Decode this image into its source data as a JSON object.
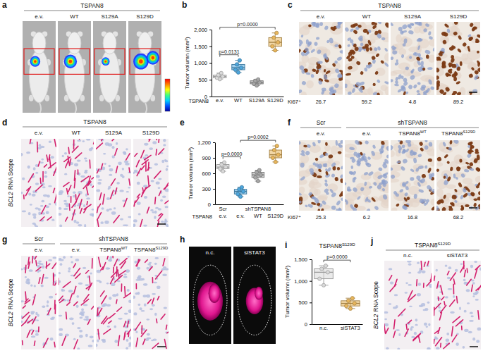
{
  "chart_data": [
    {
      "type": "box",
      "label": "b",
      "ylabel": "Tumor volumn (mm³)",
      "xlabel": "TSPAN8",
      "categories": [
        "e.v.",
        "WT",
        "S129A",
        "S129D"
      ],
      "points": [
        [
          520,
          560,
          600,
          640,
          700
        ],
        [
          720,
          800,
          860,
          960,
          1080
        ],
        [
          330,
          380,
          420,
          470,
          510
        ],
        [
          1380,
          1500,
          1620,
          1760,
          1900
        ]
      ],
      "boxes": [
        [
          520,
          560,
          600,
          640,
          700
        ],
        [
          720,
          800,
          860,
          960,
          1080
        ],
        [
          330,
          380,
          420,
          470,
          510
        ],
        [
          1380,
          1500,
          1620,
          1760,
          1900
        ]
      ],
      "colors": [
        "#d9d9d9",
        "#4ea6dc",
        "#a6a6a6",
        "#e8b65c"
      ],
      "ylim": [
        0,
        2000
      ],
      "yticks": [
        0,
        500,
        {
          "value": 1000,
          "label": "1,000"
        },
        {
          "value": 1500,
          "label": "1,500"
        },
        {
          "value": 2000,
          "label": "2,000"
        }
      ],
      "annotations": [
        {
          "text": "p=0.0131",
          "from": 0,
          "to": 1
        },
        {
          "text": "p=0.0000",
          "from": 0,
          "to": 3
        }
      ]
    },
    {
      "type": "box",
      "label": "e",
      "ylabel": "Tumor volumn (mm³)",
      "xlabel": "TSPAN8",
      "groups": [
        {
          "text": "Scr",
          "span": 1
        },
        {
          "text": "shTSPAN8",
          "span": 3
        }
      ],
      "categories": [
        "e.v.",
        "e.v.",
        "WT",
        "S129D"
      ],
      "points": [
        [
          640,
          690,
          720,
          770,
          810
        ],
        [
          150,
          200,
          250,
          290,
          330
        ],
        [
          450,
          520,
          570,
          620,
          660
        ],
        [
          820,
          900,
          960,
          1050,
          1130
        ]
      ],
      "boxes": [
        [
          640,
          690,
          720,
          770,
          810
        ],
        [
          150,
          200,
          250,
          290,
          330
        ],
        [
          450,
          520,
          570,
          620,
          660
        ],
        [
          820,
          900,
          960,
          1050,
          1130
        ]
      ],
      "colors": [
        "#d9d9d9",
        "#4ea6dc",
        "#a6a6a6",
        "#e8b65c"
      ],
      "ylim": [
        0,
        1200
      ],
      "yticks": [
        0,
        300,
        600,
        900,
        {
          "value": 1200,
          "label": "1,200"
        }
      ],
      "annotations": [
        {
          "text": "p=0.0000",
          "from": 0,
          "to": 1
        },
        {
          "text": "p=0.0002",
          "from": 1,
          "to": 3
        }
      ]
    },
    {
      "type": "box",
      "label": "i",
      "header": {
        "text": "TSPAN8",
        "sup": "S129D"
      },
      "ylabel": "Tumor volumn (mm³)",
      "categories": [
        "n.c.",
        "siSTAT3"
      ],
      "points": [
        [
          900,
          1050,
          1200,
          1280,
          1350
        ],
        [
          360,
          420,
          480,
          540,
          600
        ]
      ],
      "boxes": [
        [
          900,
          1050,
          1200,
          1280,
          1350
        ],
        [
          360,
          420,
          480,
          540,
          600
        ]
      ],
      "colors": [
        "#d9d9d9",
        "#e8b65c"
      ],
      "ylim": [
        0,
        1500
      ],
      "yticks": [
        0,
        500,
        {
          "value": 1000,
          "label": "1,000"
        },
        {
          "value": 1500,
          "label": "1,500"
        }
      ],
      "annotations": [
        {
          "text": "p=0.0000",
          "from": 0,
          "to": 1
        }
      ]
    }
  ],
  "panels": {
    "a": {
      "label": "a",
      "header": "TSPAN8",
      "columns": [
        "e.v.",
        "WT",
        "S129A",
        "S129D"
      ]
    },
    "c": {
      "label": "c",
      "header": "TSPAN8",
      "columns": [
        "e.v.",
        "WT",
        "S129A",
        "S129D"
      ],
      "metric": "Ki67⁺",
      "metric_values": [
        26.7,
        59.2,
        4.8,
        89.2
      ]
    },
    "d": {
      "label": "d",
      "side_label": {
        "italic": "BCL2",
        "text": "RNA Scope"
      },
      "header": "TSPAN8",
      "columns": [
        "e.v.",
        "WT",
        "S129A",
        "S129D"
      ]
    },
    "f": {
      "label": "f",
      "groups": [
        {
          "text": "Scr",
          "span": 1
        },
        {
          "text": "shTSPAN8",
          "span": 3
        }
      ],
      "columns": [
        "e.v.",
        "e.v.",
        {
          "text": "TSPAN8",
          "sup": "WT"
        },
        {
          "text": "TSPAN8",
          "sup": "S129D"
        }
      ],
      "metric": "Ki67⁺",
      "metric_values": [
        25.3,
        6.2,
        16.8,
        68.2
      ]
    },
    "g": {
      "label": "g",
      "side_label": {
        "italic": "BCL2",
        "text": "RNA Scope"
      },
      "groups": [
        {
          "text": "Scr",
          "span": 1
        },
        {
          "text": "shTSPAN8",
          "span": 3
        }
      ],
      "columns": [
        "e.v.",
        "e.v.",
        {
          "text": "TSPAN8",
          "sup": "WT"
        },
        {
          "text": "TSPAN8",
          "sup": "S129D"
        }
      ]
    },
    "h": {
      "label": "h",
      "columns": [
        "n.c.",
        "siSTAT3"
      ]
    },
    "j": {
      "label": "j",
      "side_label": {
        "italic": "BCL2",
        "text": "RNA Scope"
      },
      "header": {
        "text": "TSPAN8",
        "sup": "S129D"
      },
      "columns": [
        "n.c.",
        "siSTAT3"
      ]
    }
  }
}
